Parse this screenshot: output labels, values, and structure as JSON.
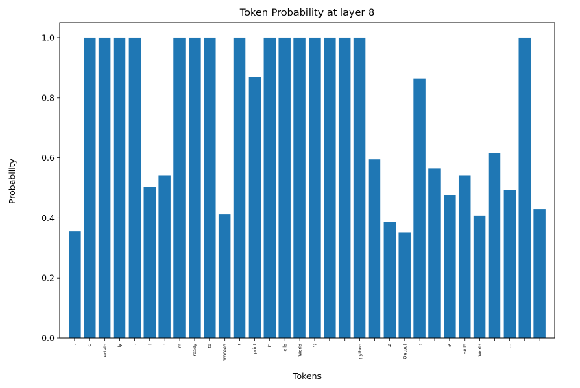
{
  "chart_data": {
    "type": "bar",
    "title": "Token Probability at layer 8",
    "xlabel": "Tokens",
    "ylabel": "Probability",
    "ylim": [
      0,
      1.05
    ],
    "yticks": [
      "0.0",
      "0.2",
      "0.4",
      "0.6",
      "0.8",
      "1.0"
    ],
    "grid": false,
    "bar_color": "#1f77b4",
    "categories": [
      ".",
      "C",
      "ertain",
      "ly",
      ",",
      "I",
      "'",
      "m",
      "ready",
      "to",
      "proceed",
      "!",
      "print",
      "(\"",
      "Hello",
      "World",
      "\")",
      "",
      "...",
      "python",
      "",
      "#",
      "Output",
      ":",
      "",
      "#",
      "Hello",
      "World",
      "",
      "...",
      "",
      ""
    ],
    "values": [
      0.355,
      1.0,
      1.0,
      1.0,
      1.0,
      0.502,
      0.541,
      1.0,
      1.0,
      1.0,
      0.412,
      1.0,
      0.868,
      1.0,
      1.0,
      1.0,
      1.0,
      1.0,
      1.0,
      1.0,
      0.594,
      0.387,
      0.352,
      0.864,
      0.564,
      0.476,
      0.541,
      0.408,
      0.617,
      0.494,
      1.0,
      0.428
    ]
  }
}
